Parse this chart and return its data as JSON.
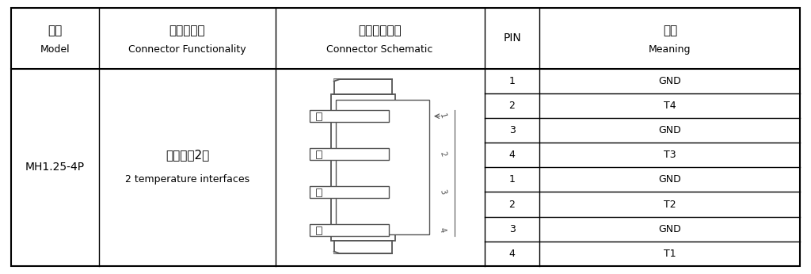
{
  "header_row1": [
    "型号",
    "接插件功能",
    "接插件示意图",
    "PIN",
    "含义"
  ],
  "header_row2": [
    "Model",
    "Connector Functionality",
    "Connector Schematic",
    "",
    "Meaning"
  ],
  "model": "MH1.25-4P",
  "func_line1": "温度接口2个",
  "func_line2": "2 temperature interfaces",
  "pin_data": [
    {
      "pin": "1",
      "meaning": "GND"
    },
    {
      "pin": "2",
      "meaning": "T4"
    },
    {
      "pin": "3",
      "meaning": "GND"
    },
    {
      "pin": "4",
      "meaning": "T3"
    },
    {
      "pin": "1",
      "meaning": "GND"
    },
    {
      "pin": "2",
      "meaning": "T2"
    },
    {
      "pin": "3",
      "meaning": "GND"
    },
    {
      "pin": "4",
      "meaning": "T1"
    }
  ],
  "bg_color": "#ffffff",
  "border_color": "#000000",
  "draw_color": "#555555",
  "text_color": "#000000"
}
